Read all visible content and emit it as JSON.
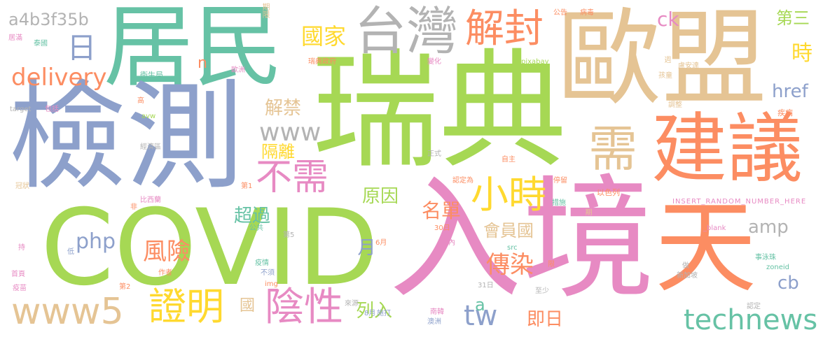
{
  "palette": {
    "pink": "#e78ac3",
    "green": "#a6d854",
    "teal": "#66c2a5",
    "orange": "#fc8d62",
    "blue": "#8da0cb",
    "tan": "#e5c494",
    "yellow": "#ffd92f",
    "gray": "#b3b3b3"
  },
  "words": [
    {
      "id": "covid",
      "text": "COVID",
      "color": "#a6d854"
    },
    {
      "id": "ruidian",
      "text": "瑞典",
      "color": "#a6d854"
    },
    {
      "id": "rujing",
      "text": "入境",
      "color": "#e78ac3"
    },
    {
      "id": "oumeng",
      "text": "歐盟",
      "color": "#e5c494"
    },
    {
      "id": "jumin",
      "text": "居民",
      "color": "#66c2a5"
    },
    {
      "id": "jiance",
      "text": "檢測",
      "color": "#8da0cb"
    },
    {
      "id": "tian",
      "text": "天",
      "color": "#fc8d62"
    },
    {
      "id": "jianyi",
      "text": "建議",
      "color": "#fc8d62"
    },
    {
      "id": "taiwan",
      "text": "台灣",
      "color": "#b3b3b3"
    },
    {
      "id": "jiefeng",
      "text": "解封",
      "color": "#fc8d62"
    },
    {
      "id": "xu",
      "text": "需",
      "color": "#e5c494"
    },
    {
      "id": "www5",
      "text": "www5",
      "color": "#e5c494"
    },
    {
      "id": "xiaoshi",
      "text": "小時",
      "color": "#ffd92f"
    },
    {
      "id": "buxu",
      "text": "不需",
      "color": "#e78ac3"
    },
    {
      "id": "zhengming",
      "text": "證明",
      "color": "#ffd92f"
    },
    {
      "id": "yinxing",
      "text": "陰性",
      "color": "#e78ac3"
    },
    {
      "id": "technews",
      "text": "technews",
      "color": "#66c2a5"
    },
    {
      "id": "a4b3",
      "text": "a4b3f35b",
      "color": "#b3b3b3"
    },
    {
      "id": "ri",
      "text": "日",
      "color": "#8da0cb"
    },
    {
      "id": "delivery",
      "text": "delivery",
      "color": "#fc8d62"
    },
    {
      "id": "guojia",
      "text": "國家",
      "color": "#ffd92f"
    },
    {
      "id": "www",
      "text": "www",
      "color": "#b3b3b3"
    },
    {
      "id": "jiejin",
      "text": "解禁",
      "color": "#e5c494"
    },
    {
      "id": "geli",
      "text": "隔離",
      "color": "#ffd92f"
    },
    {
      "id": "fengxian",
      "text": "風險",
      "color": "#fc8d62"
    },
    {
      "id": "php",
      "text": "php",
      "color": "#8da0cb"
    },
    {
      "id": "chuanran",
      "text": "傳染",
      "color": "#fc8d62"
    },
    {
      "id": "tw",
      "text": "tw",
      "color": "#8da0cb"
    },
    {
      "id": "huiyuanguo",
      "text": "會員國",
      "color": "#e5c494"
    },
    {
      "id": "amp",
      "text": "amp",
      "color": "#b3b3b3"
    },
    {
      "id": "ck",
      "text": "ck",
      "color": "#e78ac3"
    },
    {
      "id": "disan",
      "text": "第三",
      "color": "#a6d854"
    },
    {
      "id": "shi",
      "text": "時",
      "color": "#ffd92f"
    },
    {
      "id": "href",
      "text": "href",
      "color": "#8da0cb"
    },
    {
      "id": "yuanyin",
      "text": "原因",
      "color": "#a6d854"
    },
    {
      "id": "mingdan",
      "text": "名單",
      "color": "#fc8d62"
    },
    {
      "id": "chaoguo",
      "text": "超過",
      "color": "#66c2a5"
    },
    {
      "id": "yue",
      "text": "月",
      "color": "#8da0cb"
    },
    {
      "id": "cb",
      "text": "cb",
      "color": "#8da0cb"
    },
    {
      "id": "jiri",
      "text": "即日",
      "color": "#fc8d62"
    },
    {
      "id": "lieru",
      "text": "列入",
      "color": "#a6d854"
    },
    {
      "id": "guo",
      "text": "國",
      "color": "#e5c494"
    },
    {
      "id": "a",
      "text": "a",
      "color": "#66c2a5"
    },
    {
      "id": "n",
      "text": "n",
      "color": "#fc8d62"
    },
    {
      "id": "qixian",
      "text": "期限",
      "color": "#e5c494"
    },
    {
      "id": "gonggao",
      "text": "公告",
      "color": "#fc8d62"
    },
    {
      "id": "bingdu",
      "text": "病毒",
      "color": "#fc8d62"
    },
    {
      "id": "juman",
      "text": "居滿",
      "color": "#e78ac3"
    },
    {
      "id": "taiguo",
      "text": "泰國",
      "color": "#66c2a5"
    },
    {
      "id": "weishengju",
      "text": "衛生局",
      "color": "#66c2a5"
    },
    {
      "id": "ouzhou",
      "text": "歐洲",
      "color": "#e78ac3"
    },
    {
      "id": "ruidianzhengfu",
      "text": "瑞典政府",
      "color": "#fc8d62"
    },
    {
      "id": "bianhua",
      "text": "變化",
      "color": "#e78ac3"
    },
    {
      "id": "pixabay",
      "text": "pixabay",
      "color": "#a6d854"
    },
    {
      "id": "zhou",
      "text": "週",
      "color": "#e5c494"
    },
    {
      "id": "luanding",
      "text": "盧安達",
      "color": "#e5c494"
    },
    {
      "id": "haitong",
      "text": "孩童",
      "color": "#e5c494"
    },
    {
      "id": "tiaozheng",
      "text": "調整",
      "color": "#e5c494"
    },
    {
      "id": "jibing",
      "text": "疾病",
      "color": "#fc8d62"
    },
    {
      "id": "gao",
      "text": "高",
      "color": "#fc8d62"
    },
    {
      "id": "target",
      "text": "target",
      "color": "#b3b3b3"
    },
    {
      "id": "baokuo",
      "text": "包括",
      "color": "#e78ac3"
    },
    {
      "id": "avw",
      "text": "avw",
      "color": "#a6d854"
    },
    {
      "id": "jingjiqu",
      "text": "經濟區",
      "color": "#b3b3b3"
    },
    {
      "id": "zhengshi",
      "text": "正式",
      "color": "#b3b3b3"
    },
    {
      "id": "zizhu",
      "text": "自主",
      "color": "#fc8d62"
    },
    {
      "id": "guanzhuang",
      "text": "冠狀",
      "color": "#e5c494"
    },
    {
      "id": "di1",
      "text": "第1",
      "color": "#fc8d62"
    },
    {
      "id": "rendingwei",
      "text": "認定為",
      "color": "#fc8d62"
    },
    {
      "id": "tingliu",
      "text": "停留",
      "color": "#fc8d62"
    },
    {
      "id": "yiseli",
      "text": "以色列",
      "color": "#fc8d62"
    },
    {
      "id": "cuoshi",
      "text": "措施",
      "color": "#66c2a5"
    },
    {
      "id": "qi",
      "text": "期",
      "color": "#e5c494"
    },
    {
      "id": "insert",
      "text": "INSERT_RANDOM_NUMBER_HERE",
      "color": "#e78ac3"
    },
    {
      "id": "fei",
      "text": "非",
      "color": "#fc8d62"
    },
    {
      "id": "bixiya",
      "text": "比西蘭",
      "color": "#e78ac3"
    },
    {
      "id": "gonggong",
      "text": "公共",
      "color": "#66c2a5"
    },
    {
      "id": "di5",
      "text": "第5",
      "color": "#b3b3b3"
    },
    {
      "id": "blank",
      "text": "_blank",
      "color": "#e78ac3"
    },
    {
      "id": "chi",
      "text": "持",
      "color": "#e78ac3"
    },
    {
      "id": "di",
      "text": "低",
      "color": "#8da0cb"
    },
    {
      "id": "yue6",
      "text": "6月",
      "color": "#fc8d62"
    },
    {
      "id": "ri30",
      "text": "30日",
      "color": "#fc8d62"
    },
    {
      "id": "zhinei",
      "text": "之內",
      "color": "#e78ac3"
    },
    {
      "id": "src",
      "text": "src",
      "color": "#66c2a5"
    },
    {
      "id": "xian",
      "text": "限",
      "color": "#fc8d62"
    },
    {
      "id": "zhuo",
      "text": "卓",
      "color": "#fc8d62"
    },
    {
      "id": "yiqing",
      "text": "疫情",
      "color": "#66c2a5"
    },
    {
      "id": "shouye",
      "text": "首頁",
      "color": "#e78ac3"
    },
    {
      "id": "zuozhe",
      "text": "作者",
      "color": "#fc8d62"
    },
    {
      "id": "bubi",
      "text": "不須",
      "color": "#8da0cb"
    },
    {
      "id": "zuo",
      "text": "做",
      "color": "#b3b3b3"
    },
    {
      "id": "xinjiapo",
      "text": "新加坡",
      "color": "#b3b3b3"
    },
    {
      "id": "zhongyongji",
      "text": "事泳珠",
      "color": "#66c2a5"
    },
    {
      "id": "zoneid",
      "text": "zoneid",
      "color": "#66c2a5"
    },
    {
      "id": "yimiao",
      "text": "疫苗",
      "color": "#e78ac3"
    },
    {
      "id": "di2",
      "text": "第2",
      "color": "#fc8d62"
    },
    {
      "id": "img",
      "text": "img",
      "color": "#fc8d62"
    },
    {
      "id": "laiyuan",
      "text": "來源",
      "color": "#b3b3b3"
    },
    {
      "id": "yue8",
      "text": "8月",
      "color": "#8da0cb"
    },
    {
      "id": "ri31",
      "text": "31日",
      "color": "#b3b3b3"
    },
    {
      "id": "zhishao",
      "text": "至少",
      "color": "#b3b3b3"
    },
    {
      "id": "shida",
      "text": "施打",
      "color": "#8da0cb"
    },
    {
      "id": "nanhan",
      "text": "南韓",
      "color": "#e78ac3"
    },
    {
      "id": "aozhou",
      "text": "澳洲",
      "color": "#8da0cb"
    },
    {
      "id": "rending",
      "text": "認定",
      "color": "#b3b3b3"
    }
  ]
}
